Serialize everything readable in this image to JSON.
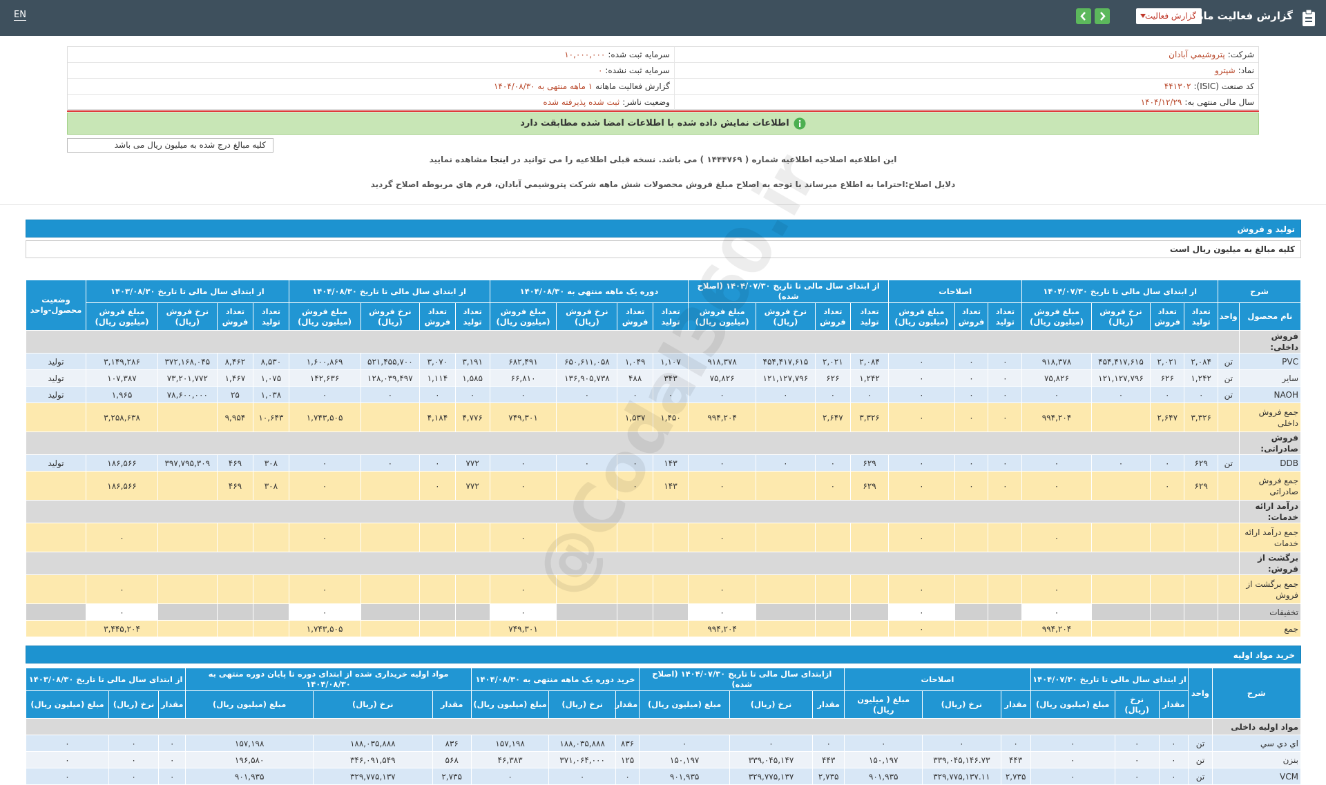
{
  "header": {
    "title": "گزارش فعالیت ماهانه",
    "dropdown": "گزارش فعالیت",
    "language": "EN"
  },
  "info": {
    "right": [
      {
        "label": "شرکت:",
        "value": "پتروشيمي آبادان"
      },
      {
        "label": "نماد:",
        "value": "شپترو"
      },
      {
        "label": "کد صنعت (ISIC):",
        "value": "۴۴۱۳۰۲"
      },
      {
        "label": "سال مالی منتهی به:",
        "value": "۱۴۰۴/۱۲/۲۹"
      }
    ],
    "left": [
      {
        "label": "سرمایه ثبت شده:",
        "value": "۱۰,۰۰۰,۰۰۰"
      },
      {
        "label": "سرمایه ثبت نشده:",
        "value": "۰"
      },
      {
        "label": "گزارش فعالیت ماهانه",
        "value": "۱ ماهه منتهی به ۱۴۰۴/۰۸/۳۰"
      },
      {
        "label": "وضعیت ناشر:",
        "value": "ثبت شده پذیرفته شده"
      }
    ]
  },
  "banner": "اطلاعات نمایش داده شده با اطلاعات امضا شده مطابقت دارد",
  "amounts_note": "کلیه مبالغ درج شده به میلیون ریال می باشد",
  "notice": {
    "before": "این اطلاعیه اصلاحیه اطلاعیه شماره ( ۱۴۴۴۷۶۹ ) می باشد. نسخه قبلی اطلاعیه را می توانید در",
    "link": "اینجا",
    "after": "مشاهده نمایید"
  },
  "reason": "دلایل اصلاح:احتراما به اطلاع میرساند با توجه به اصلاح مبلغ فروش محصولات شش ماهه شرکت پتروشيمي آبادان، فرم هاي مربوطه اصلاح گردید",
  "watermark": "@Codal360.ir",
  "sales": {
    "section_title": "تولید و فروش",
    "note": "کلیه مبالغ به میلیون ریال است",
    "groups": [
      {
        "title": "شرح",
        "columns": [
          "نام محصول",
          "واحد"
        ]
      },
      {
        "title": "از ابتدای سال مالی تا تاریخ ۱۴۰۴/۰۷/۳۰",
        "columns": [
          "تعداد تولید",
          "تعداد فروش",
          "نرخ فروش (ریال)",
          "مبلغ فروش (میلیون ریال)"
        ]
      },
      {
        "title": "اصلاحات",
        "columns": [
          "تعداد تولید",
          "تعداد فروش",
          "مبلغ فروش (میلیون ریال)"
        ]
      },
      {
        "title": "از ابتدای سال مالی تا تاریخ ۱۴۰۴/۰۷/۳۰ (اصلاح شده)",
        "columns": [
          "تعداد تولید",
          "تعداد فروش",
          "نرخ فروش (ریال)",
          "مبلغ فروش (میلیون ریال)"
        ]
      },
      {
        "title": "دوره یک ماهه منتهی به ۱۴۰۴/۰۸/۳۰",
        "columns": [
          "تعداد تولید",
          "تعداد فروش",
          "نرخ فروش (ریال)",
          "مبلغ فروش (میلیون ریال)"
        ]
      },
      {
        "title": "از ابتدای سال مالی تا تاریخ ۱۴۰۴/۰۸/۳۰",
        "columns": [
          "تعداد تولید",
          "تعداد فروش",
          "نرخ فروش (ریال)",
          "مبلغ فروش (میلیون ریال)"
        ]
      },
      {
        "title": "از ابتدای سال مالی تا تاریخ ۱۴۰۳/۰۸/۳۰",
        "columns": [
          "تعداد تولید",
          "تعداد فروش",
          "نرخ فروش (ریال)",
          "مبلغ فروش (میلیون ریال)"
        ]
      },
      {
        "title": "وضعیت محصول-واحد"
      }
    ],
    "blocks": [
      {
        "title": "فروش داخلی:",
        "rows": [
          {
            "name": "PVC",
            "unit": "تن",
            "status": "تولید",
            "cells": [
              "۲,۰۸۴",
              "۲,۰۲۱",
              "۴۵۴,۴۱۷,۶۱۵",
              "۹۱۸,۳۷۸",
              "۰",
              "۰",
              "۰",
              "۲,۰۸۴",
              "۲,۰۲۱",
              "۴۵۴,۴۱۷,۶۱۵",
              "۹۱۸,۳۷۸",
              "۱,۱۰۷",
              "۱,۰۴۹",
              "۶۵۰,۶۱۱,۰۵۸",
              "۶۸۲,۴۹۱",
              "۳,۱۹۱",
              "۳,۰۷۰",
              "۵۲۱,۴۵۵,۷۰۰",
              "۱,۶۰۰,۸۶۹",
              "۸,۵۳۰",
              "۸,۴۶۲",
              "۳۷۲,۱۶۸,۰۴۵",
              "۳,۱۴۹,۲۸۶"
            ]
          },
          {
            "name": "سایر",
            "unit": "تن",
            "status": "تولید",
            "cells": [
              "۱,۲۴۲",
              "۶۲۶",
              "۱۲۱,۱۲۷,۷۹۶",
              "۷۵,۸۲۶",
              "۰",
              "۰",
              "۰",
              "۱,۲۴۲",
              "۶۲۶",
              "۱۲۱,۱۲۷,۷۹۶",
              "۷۵,۸۲۶",
              "۳۴۳",
              "۴۸۸",
              "۱۳۶,۹۰۵,۷۳۸",
              "۶۶,۸۱۰",
              "۱,۵۸۵",
              "۱,۱۱۴",
              "۱۲۸,۰۳۹,۴۹۷",
              "۱۴۲,۶۳۶",
              "۱,۰۷۵",
              "۱,۴۶۷",
              "۷۳,۲۰۱,۷۷۲",
              "۱۰۷,۳۸۷"
            ]
          },
          {
            "name": "NAOH",
            "unit": "تن",
            "status": "تولید",
            "cells": [
              "۰",
              "۰",
              "۰",
              "۰",
              "۰",
              "۰",
              "۰",
              "۰",
              "۰",
              "۰",
              "۰",
              "۰",
              "۰",
              "۰",
              "۰",
              "۰",
              "۰",
              "۰",
              "۰",
              "۱,۰۳۸",
              "۲۵",
              "۷۸,۶۰۰,۰۰۰",
              "۱,۹۶۵"
            ]
          }
        ],
        "total": {
          "name": "جمع فروش داخلی",
          "cells": [
            "۳,۳۲۶",
            "۲,۶۴۷",
            null,
            "۹۹۴,۲۰۴",
            "۰",
            "۰",
            "۰",
            "۳,۳۲۶",
            "۲,۶۴۷",
            null,
            "۹۹۴,۲۰۴",
            "۱,۴۵۰",
            "۱,۵۳۷",
            null,
            "۷۴۹,۳۰۱",
            "۴,۷۷۶",
            "۴,۱۸۴",
            null,
            "۱,۷۴۳,۵۰۵",
            "۱۰,۶۴۳",
            "۹,۹۵۴",
            null,
            "۳,۲۵۸,۶۳۸"
          ]
        }
      },
      {
        "title": "فروش صادراتی:",
        "rows": [
          {
            "name": "DDB",
            "unit": "تن",
            "status": "تولید",
            "cells": [
              "۶۲۹",
              "۰",
              "۰",
              "۰",
              "۰",
              "۰",
              "۰",
              "۶۲۹",
              "۰",
              "۰",
              "۰",
              "۱۴۳",
              "۰",
              "۰",
              "۰",
              "۷۷۲",
              "۰",
              "۰",
              "۰",
              "۳۰۸",
              "۴۶۹",
              "۳۹۷,۷۹۵,۳۰۹",
              "۱۸۶,۵۶۶"
            ]
          }
        ],
        "total": {
          "name": "جمع فروش صادراتی",
          "cells": [
            "۶۲۹",
            "۰",
            null,
            "۰",
            "۰",
            "۰",
            "۰",
            "۶۲۹",
            "۰",
            null,
            "۰",
            "۱۴۳",
            "۰",
            null,
            "۰",
            "۷۷۲",
            "۰",
            null,
            "۰",
            "۳۰۸",
            "۴۶۹",
            null,
            "۱۸۶,۵۶۶"
          ]
        }
      },
      {
        "title": "درآمد ارائه خدمات:",
        "total": {
          "name": "جمع درآمد ارائه خدمات",
          "cells": [
            null,
            null,
            null,
            "۰",
            null,
            null,
            "۰",
            null,
            null,
            null,
            "۰",
            null,
            null,
            null,
            "۰",
            null,
            null,
            null,
            "۰",
            null,
            null,
            null,
            "۰"
          ]
        }
      },
      {
        "title": "برگشت از فروش:",
        "total": {
          "name": "جمع برگشت از فروش",
          "cells": [
            null,
            null,
            null,
            "۰",
            null,
            null,
            "۰",
            null,
            null,
            null,
            "۰",
            null,
            null,
            null,
            "۰",
            null,
            null,
            null,
            "۰",
            null,
            null,
            null,
            "۰"
          ]
        }
      }
    ],
    "discount": {
      "name": "تخفیفات",
      "cells": [
        null,
        null,
        null,
        "۰",
        null,
        null,
        "۰",
        null,
        null,
        null,
        "۰",
        null,
        null,
        null,
        "۰",
        null,
        null,
        null,
        "۰",
        null,
        null,
        null,
        "۰"
      ]
    },
    "grand_total": {
      "name": "جمع",
      "cells": [
        null,
        null,
        null,
        "۹۹۴,۲۰۴",
        null,
        null,
        "۰",
        null,
        null,
        null,
        "۹۹۴,۲۰۴",
        null,
        null,
        null,
        "۷۴۹,۳۰۱",
        null,
        null,
        null,
        "۱,۷۴۳,۵۰۵",
        null,
        null,
        null,
        "۳,۴۴۵,۲۰۴"
      ]
    }
  },
  "purchases": {
    "section_title": "خرید مواد اولیه",
    "groups": [
      {
        "title": "شرح"
      },
      {
        "title": "واحد"
      },
      {
        "title": "از ابتدای سال مالی تا تاریخ ۱۴۰۴/۰۷/۳۰",
        "columns": [
          "مقدار",
          "نرخ (ریال)",
          "مبلغ (میلیون ریال)"
        ]
      },
      {
        "title": "اصلاحات",
        "columns": [
          "مقدار",
          "نرخ (ریال)",
          "مبلغ ( میلیون ریال)"
        ]
      },
      {
        "title": "ازابتدای سال مالی تا تاریخ ۱۴۰۴/۰۷/۳۰ (اصلاح شده)",
        "columns": [
          "مقدار",
          "نرخ (ریال)",
          "مبلغ (میلیون ریال)"
        ]
      },
      {
        "title": "خرید دوره یک ماهه منتهی به ۱۴۰۴/۰۸/۳۰",
        "columns": [
          "مقدار",
          "نرخ (ریال)",
          "مبلغ (میلیون ریال)"
        ]
      },
      {
        "title": "مواد اولیه خریداری شده از ابتدای دوره تا پایان دوره منتهی به ۱۴۰۴/۰۸/۳۰",
        "columns": [
          "مقدار",
          "نرخ (ریال)",
          "مبلغ (میلیون ریال)"
        ]
      },
      {
        "title": "از ابتدای سال مالی تا تاریخ ۱۴۰۳/۰۸/۳۰",
        "columns": [
          "مقدار",
          "نرخ (ریال)",
          "مبلغ (میلیون ریال)"
        ]
      }
    ],
    "blocks": [
      {
        "title": "مواد اولیه داخلی",
        "rows": [
          {
            "name": "اي دي سي",
            "unit": "تن",
            "cells": [
              "۰",
              "۰",
              "۰",
              "۰",
              "۰",
              "۰",
              "۰",
              "۰",
              "۰",
              "۸۳۶",
              "۱۸۸,۰۳۵,۸۸۸",
              "۱۵۷,۱۹۸",
              "۸۳۶",
              "۱۸۸,۰۳۵,۸۸۸",
              "۱۵۷,۱۹۸",
              "۰",
              "۰",
              "۰"
            ]
          },
          {
            "name": "بنزن",
            "unit": "تن",
            "cells": [
              "۰",
              "۰",
              "۰",
              "۴۴۳",
              "۳۳۹,۰۴۵,۱۴۶.۷۳",
              "۱۵۰,۱۹۷",
              "۴۴۳",
              "۳۳۹,۰۴۵,۱۴۷",
              "۱۵۰,۱۹۷",
              "۱۲۵",
              "۳۷۱,۰۶۴,۰۰۰",
              "۴۶,۳۸۳",
              "۵۶۸",
              "۳۴۶,۰۹۱,۵۴۹",
              "۱۹۶,۵۸۰",
              "۰",
              "۰",
              "۰"
            ]
          },
          {
            "name": "VCM",
            "unit": "تن",
            "cells": [
              "۰",
              "۰",
              "۰",
              "۲,۷۳۵",
              "۳۲۹,۷۷۵,۱۳۷.۱۱",
              "۹۰۱,۹۳۵",
              "۲,۷۳۵",
              "۳۲۹,۷۷۵,۱۳۷",
              "۹۰۱,۹۳۵",
              "۰",
              "۰",
              "۰",
              "۲,۷۳۵",
              "۳۲۹,۷۷۵,۱۳۷",
              "۹۰۱,۹۳۵",
              "۰",
              "۰",
              "۰"
            ]
          }
        ]
      }
    ]
  }
}
